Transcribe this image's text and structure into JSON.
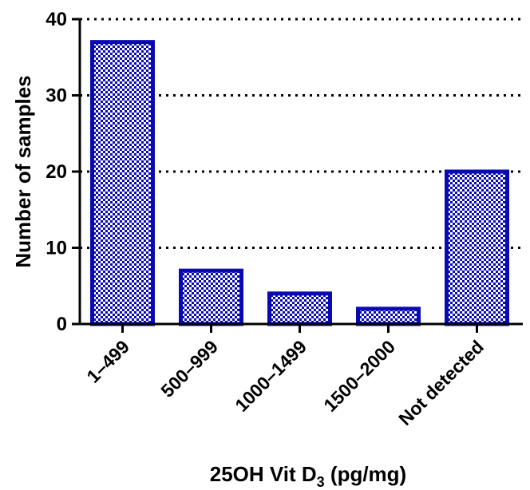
{
  "chart_data": {
    "type": "bar",
    "title": "",
    "categories": [
      "1–499",
      "500–999",
      "1000–1499",
      "1500–2000",
      "Not detected"
    ],
    "values": [
      37,
      7,
      4,
      2,
      20
    ],
    "xlabel": {
      "main": "25OH Vit D",
      "sub": "3",
      "unit": " (pg/mg)"
    },
    "ylabel": "Number of samples",
    "ylim": [
      0,
      40
    ],
    "yticks": [
      0,
      10,
      20,
      30,
      40
    ],
    "grid": "horizontal-dotted",
    "bar_fill_pattern": "checkerboard",
    "colors": {
      "bar_edge": "#0a0ab4",
      "bar_fill": "#0a0ab4",
      "axis": "#000000",
      "grid": "#000000"
    }
  }
}
